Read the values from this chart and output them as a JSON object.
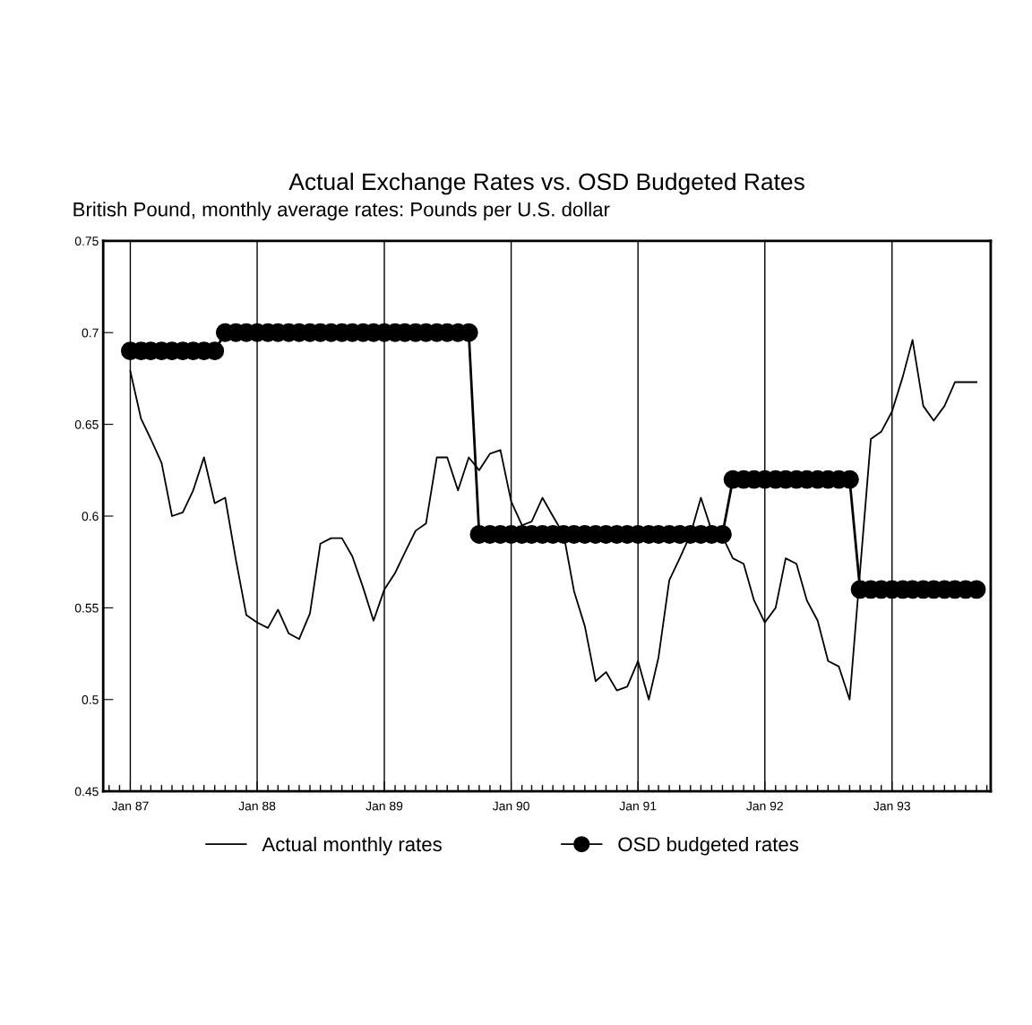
{
  "chart_data": {
    "type": "line",
    "title": "Actual Exchange Rates vs. OSD Budgeted Rates",
    "subtitle": "British Pound, monthly average rates: Pounds per U.S. dollar",
    "x": [
      "1987-01",
      "1987-02",
      "1987-03",
      "1987-04",
      "1987-05",
      "1987-06",
      "1987-07",
      "1987-08",
      "1987-09",
      "1987-10",
      "1987-11",
      "1987-12",
      "1988-01",
      "1988-02",
      "1988-03",
      "1988-04",
      "1988-05",
      "1988-06",
      "1988-07",
      "1988-08",
      "1988-09",
      "1988-10",
      "1988-11",
      "1988-12",
      "1989-01",
      "1989-02",
      "1989-03",
      "1989-04",
      "1989-05",
      "1989-06",
      "1989-07",
      "1989-08",
      "1989-09",
      "1989-10",
      "1989-11",
      "1989-12",
      "1990-01",
      "1990-02",
      "1990-03",
      "1990-04",
      "1990-05",
      "1990-06",
      "1990-07",
      "1990-08",
      "1990-09",
      "1990-10",
      "1990-11",
      "1990-12",
      "1991-01",
      "1991-02",
      "1991-03",
      "1991-04",
      "1991-05",
      "1991-06",
      "1991-07",
      "1991-08",
      "1991-09",
      "1991-10",
      "1991-11",
      "1991-12",
      "1992-01",
      "1992-02",
      "1992-03",
      "1992-04",
      "1992-05",
      "1992-06",
      "1992-07",
      "1992-08",
      "1992-09",
      "1992-10",
      "1992-11",
      "1992-12",
      "1993-01",
      "1993-02",
      "1993-03",
      "1993-04",
      "1993-05",
      "1993-06",
      "1993-07",
      "1993-08",
      "1993-09"
    ],
    "series": [
      {
        "name": "Actual monthly rates",
        "color": "#000000",
        "marker": "none",
        "values": [
          0.679,
          0.653,
          0.642,
          0.629,
          0.6,
          0.602,
          0.614,
          0.632,
          0.607,
          0.61,
          0.576,
          0.546,
          0.542,
          0.539,
          0.549,
          0.536,
          0.533,
          0.547,
          0.585,
          0.588,
          0.588,
          0.578,
          0.561,
          0.543,
          0.56,
          0.569,
          0.58,
          0.592,
          0.596,
          0.632,
          0.632,
          0.614,
          0.632,
          0.625,
          0.634,
          0.636,
          0.608,
          0.595,
          0.597,
          0.61,
          0.6,
          0.59,
          0.559,
          0.54,
          0.51,
          0.515,
          0.505,
          0.507,
          0.521,
          0.5,
          0.523,
          0.565,
          0.577,
          0.59,
          0.61,
          0.592,
          0.589,
          0.577,
          0.574,
          0.554,
          0.542,
          0.55,
          0.577,
          0.574,
          0.554,
          0.543,
          0.521,
          0.518,
          0.5,
          0.57,
          0.642,
          0.646,
          0.657,
          0.676,
          0.696,
          0.66,
          0.652,
          0.66,
          0.673,
          0.673,
          0.673
        ]
      },
      {
        "name": "OSD budgeted rates",
        "color": "#000000",
        "marker": "circle",
        "values": [
          0.69,
          0.69,
          0.69,
          0.69,
          0.69,
          0.69,
          0.69,
          0.69,
          0.69,
          0.7,
          0.7,
          0.7,
          0.7,
          0.7,
          0.7,
          0.7,
          0.7,
          0.7,
          0.7,
          0.7,
          0.7,
          0.7,
          0.7,
          0.7,
          0.7,
          0.7,
          0.7,
          0.7,
          0.7,
          0.7,
          0.7,
          0.7,
          0.7,
          0.59,
          0.59,
          0.59,
          0.59,
          0.59,
          0.59,
          0.59,
          0.59,
          0.59,
          0.59,
          0.59,
          0.59,
          0.59,
          0.59,
          0.59,
          0.59,
          0.59,
          0.59,
          0.59,
          0.59,
          0.59,
          0.59,
          0.59,
          0.59,
          0.62,
          0.62,
          0.62,
          0.62,
          0.62,
          0.62,
          0.62,
          0.62,
          0.62,
          0.62,
          0.62,
          0.62,
          0.56,
          0.56,
          0.56,
          0.56,
          0.56,
          0.56,
          0.56,
          0.56,
          0.56,
          0.56,
          0.56,
          0.56
        ]
      }
    ],
    "xlim": [
      "1986-10-15",
      "1993-10-12"
    ],
    "xticks": [
      {
        "value": "1987-01",
        "label": "Jan 87"
      },
      {
        "value": "1988-01",
        "label": "Jan 88"
      },
      {
        "value": "1989-01",
        "label": "Jan 89"
      },
      {
        "value": "1990-01",
        "label": "Jan 90"
      },
      {
        "value": "1991-01",
        "label": "Jan 91"
      },
      {
        "value": "1992-01",
        "label": "Jan 92"
      },
      {
        "value": "1993-01",
        "label": "Jan 93"
      }
    ],
    "ylim": [
      0.45,
      0.75
    ],
    "yticks": [
      0.45,
      0.5,
      0.55,
      0.6,
      0.65,
      0.7,
      0.75
    ],
    "grid": "x",
    "legend": "bottom",
    "line_style": "solid"
  }
}
